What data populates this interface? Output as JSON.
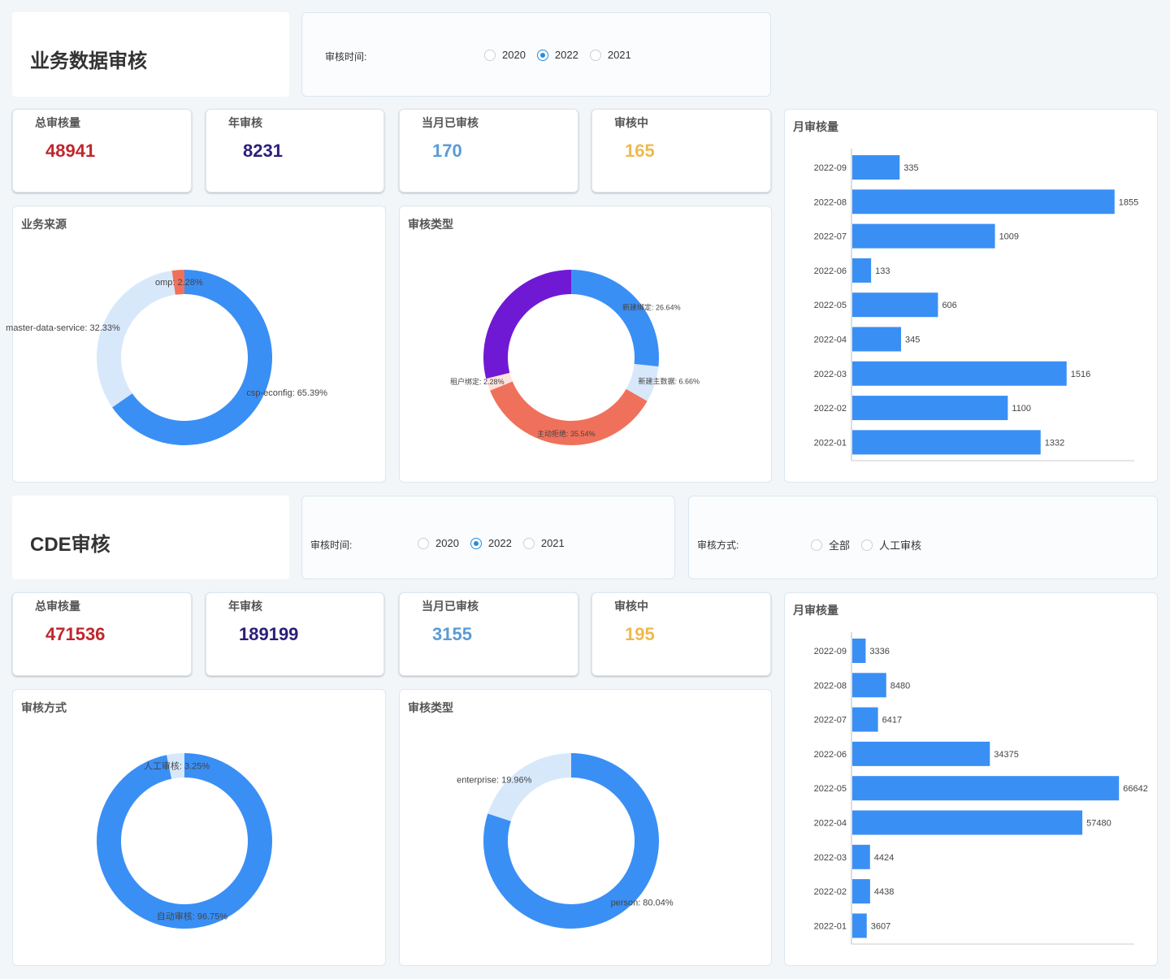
{
  "section1": {
    "title": "业务数据审核",
    "filter_time": {
      "label": "审核时间:",
      "options": [
        {
          "label": "2020",
          "checked": false
        },
        {
          "label": "2022",
          "checked": true
        },
        {
          "label": "2021",
          "checked": false
        }
      ]
    },
    "stats": [
      {
        "label": "总审核量",
        "value": "48941",
        "color": "#c0272d"
      },
      {
        "label": "年审核",
        "value": "8231",
        "color": "#2b1f7a"
      },
      {
        "label": "当月已审核",
        "value": "170",
        "color": "#5b9bd5"
      },
      {
        "label": "审核中",
        "value": "165",
        "color": "#f0b94e"
      }
    ],
    "source_title": "业务来源",
    "type_title": "审核类型",
    "monthly_title": "月审核量"
  },
  "section2": {
    "title": "CDE审核",
    "filter_time": {
      "label": "审核时间:",
      "options": [
        {
          "label": "2020",
          "checked": false
        },
        {
          "label": "2022",
          "checked": true
        },
        {
          "label": "2021",
          "checked": false
        }
      ]
    },
    "filter_mode": {
      "label": "审核方式:",
      "options": [
        {
          "label": "全部",
          "checked": false
        },
        {
          "label": "人工审核",
          "checked": false
        }
      ]
    },
    "stats": [
      {
        "label": "总审核量",
        "value": "471536",
        "color": "#c0272d"
      },
      {
        "label": "年审核",
        "value": "189199",
        "color": "#2b1f7a"
      },
      {
        "label": "当月已审核",
        "value": "3155",
        "color": "#5b9bd5"
      },
      {
        "label": "审核中",
        "value": "195",
        "color": "#f0b94e"
      }
    ],
    "mode_title": "审核方式",
    "type_title": "审核类型",
    "monthly_title": "月审核量"
  },
  "chart_data": [
    {
      "id": "s1-source",
      "type": "pie",
      "title": "业务来源",
      "slices": [
        {
          "name": "csp-econfig",
          "label": "csp-econfig: 65.39%",
          "value": 65.39,
          "color": "#3a8ff5"
        },
        {
          "name": "master-data-service",
          "label": "master-data-service: 32.33%",
          "value": 32.33,
          "color": "#d8e8fb"
        },
        {
          "name": "omp",
          "label": "omp: 2.28%",
          "value": 2.28,
          "color": "#f0715b"
        }
      ]
    },
    {
      "id": "s1-type",
      "type": "pie",
      "title": "审核类型",
      "slices": [
        {
          "name": "新建绑定",
          "label": "新建绑定: 26.64%",
          "value": 26.64,
          "color": "#3a8ff5"
        },
        {
          "name": "新建主数据",
          "label": "新建主数据: 6.66%",
          "value": 6.66,
          "color": "#d8e8fb"
        },
        {
          "name": "主动拒绝",
          "label": "主动拒绝: 35.54%",
          "value": 35.54,
          "color": "#f0715b"
        },
        {
          "name": "租户绑定",
          "label": "租户绑定: 2.28%",
          "value": 2.28,
          "color": "#fde3dc"
        },
        {
          "name": "",
          "label": "",
          "value": 28.88,
          "color": "#7019d4"
        }
      ]
    },
    {
      "id": "s1-monthly",
      "type": "bar",
      "title": "月审核量",
      "orientation": "horizontal",
      "categories": [
        "2022-09",
        "2022-08",
        "2022-07",
        "2022-06",
        "2022-05",
        "2022-04",
        "2022-03",
        "2022-02",
        "2022-01"
      ],
      "values": [
        335,
        1855,
        1009,
        133,
        606,
        345,
        1516,
        1100,
        1332
      ],
      "xlim": [
        0,
        2000
      ],
      "color": "#3a8ff5"
    },
    {
      "id": "s2-mode",
      "type": "pie",
      "title": "审核方式",
      "slices": [
        {
          "name": "自动审核",
          "label": "自动审核: 96.75%",
          "value": 96.75,
          "color": "#3a8ff5"
        },
        {
          "name": "人工审核",
          "label": "人工审核: 3.25%",
          "value": 3.25,
          "color": "#d8e8fb"
        }
      ]
    },
    {
      "id": "s2-type",
      "type": "pie",
      "title": "审核类型",
      "slices": [
        {
          "name": "person",
          "label": "person: 80.04%",
          "value": 80.04,
          "color": "#3a8ff5"
        },
        {
          "name": "enterprise",
          "label": "enterprise: 19.96%",
          "value": 19.96,
          "color": "#d8e8fb"
        }
      ]
    },
    {
      "id": "s2-monthly",
      "type": "bar",
      "title": "月审核量",
      "orientation": "horizontal",
      "categories": [
        "2022-09",
        "2022-08",
        "2022-07",
        "2022-06",
        "2022-05",
        "2022-04",
        "2022-03",
        "2022-02",
        "2022-01"
      ],
      "values": [
        3336,
        8480,
        6417,
        34375,
        66642,
        57480,
        4424,
        4438,
        3607
      ],
      "xlim": [
        0,
        67000
      ],
      "color": "#3a8ff5"
    }
  ]
}
